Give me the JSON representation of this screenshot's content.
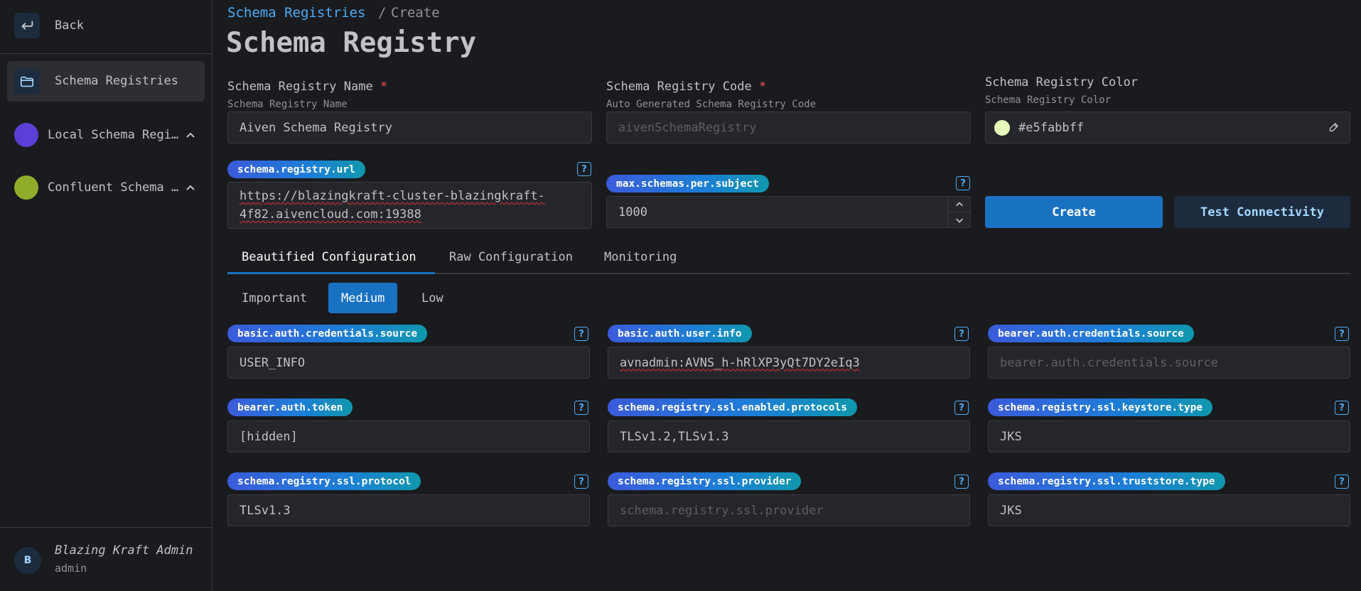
{
  "sidebar": {
    "back_label": "Back",
    "active_item_label": "Schema Registries",
    "registries": [
      {
        "label": "Local Schema Regi…",
        "color": "#5c3fd6"
      },
      {
        "label": "Confluent Schema …",
        "color": "#8fad2b"
      }
    ],
    "user": {
      "avatar_initial": "B",
      "name": "Blazing Kraft Admin",
      "role": "admin"
    }
  },
  "breadcrumb": {
    "parent": "Schema Registries",
    "separator": "/",
    "current": "Create"
  },
  "page_title": "Schema Registry",
  "form": {
    "name": {
      "label": "Schema Registry Name",
      "required_mark": "*",
      "description": "Schema Registry Name",
      "value": "Aiven Schema Registry"
    },
    "code": {
      "label": "Schema Registry Code",
      "required_mark": "*",
      "description": "Auto Generated Schema Registry Code",
      "placeholder": "aivenSchemaRegistry"
    },
    "color": {
      "label": "Schema Registry Color",
      "description": "Schema Registry Color",
      "value": "#e5fabbff",
      "swatch": "#e5fabb"
    },
    "url": {
      "badge": "schema.registry.url",
      "value_line1": "https://blazingkraft-cluster-blazingkraft-",
      "value_line2": "4f82.aivencloud.com:19388"
    },
    "max_schemas": {
      "badge": "max.schemas.per.subject",
      "value": "1000"
    },
    "create_button": "Create",
    "test_button": "Test Connectivity"
  },
  "tabs": [
    "Beautified Configuration",
    "Raw Configuration",
    "Monitoring"
  ],
  "active_tab": "Beautified Configuration",
  "importance": [
    "Important",
    "Medium",
    "Low"
  ],
  "active_importance": "Medium",
  "config_fields": [
    {
      "key": "basic.auth.credentials.source",
      "value": "USER_INFO",
      "placeholder": ""
    },
    {
      "key": "basic.auth.user.info",
      "value": "avnadmin:AVNS_h-hRlXP3yQt7DY2eIq3",
      "placeholder": ""
    },
    {
      "key": "bearer.auth.credentials.source",
      "value": "",
      "placeholder": "bearer.auth.credentials.source"
    },
    {
      "key": "bearer.auth.token",
      "value": "[hidden]",
      "placeholder": ""
    },
    {
      "key": "schema.registry.ssl.enabled.protocols",
      "value": "TLSv1.2,TLSv1.3",
      "placeholder": ""
    },
    {
      "key": "schema.registry.ssl.keystore.type",
      "value": "JKS",
      "placeholder": ""
    },
    {
      "key": "schema.registry.ssl.protocol",
      "value": "TLSv1.3",
      "placeholder": ""
    },
    {
      "key": "schema.registry.ssl.provider",
      "value": "",
      "placeholder": "schema.registry.ssl.provider"
    },
    {
      "key": "schema.registry.ssl.truststore.type",
      "value": "JKS",
      "placeholder": ""
    }
  ],
  "help_glyph": "?",
  "colors": {
    "accent": "#1971c2",
    "link": "#4dabf7",
    "required": "#fa5252",
    "secondary_button": "#1c2b3e"
  }
}
